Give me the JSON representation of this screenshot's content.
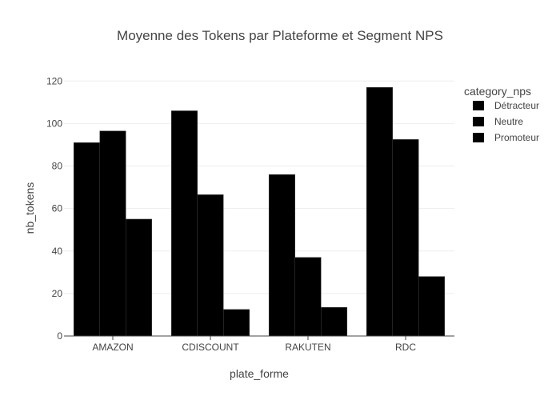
{
  "chart_data": {
    "type": "bar",
    "title": "Moyenne des Tokens par Plateforme et Segment NPS",
    "xlabel": "plate_forme",
    "ylabel": "nb_tokens",
    "categories": [
      "AMAZON",
      "CDISCOUNT",
      "RAKUTEN",
      "RDC"
    ],
    "series": [
      {
        "name": "Détracteur",
        "values": [
          91,
          106,
          76,
          117
        ],
        "color": "#000000"
      },
      {
        "name": "Neutre",
        "values": [
          96.5,
          66.5,
          37,
          92.5
        ],
        "color": "#000000"
      },
      {
        "name": "Promoteur",
        "values": [
          55,
          12.5,
          13.5,
          28
        ],
        "color": "#000000"
      }
    ],
    "ylim": [
      0,
      122
    ],
    "yticks": [
      0,
      20,
      40,
      60,
      80,
      100,
      120
    ],
    "grid": true,
    "legend": {
      "title": "category_nps",
      "placement": "top-right"
    }
  }
}
